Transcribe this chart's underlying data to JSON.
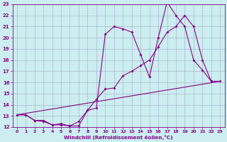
{
  "background_color": "#cceef0",
  "grid_color": "#aab8cc",
  "line_color": "#880088",
  "xlim": [
    -0.5,
    23.5
  ],
  "ylim": [
    12,
    23
  ],
  "xlabel": "Windchill (Refroidissement éolien,°C)",
  "xticks": [
    0,
    1,
    2,
    3,
    4,
    5,
    6,
    7,
    8,
    9,
    10,
    11,
    12,
    13,
    14,
    15,
    16,
    17,
    18,
    19,
    20,
    21,
    22,
    23
  ],
  "yticks": [
    12,
    13,
    14,
    15,
    16,
    17,
    18,
    19,
    20,
    21,
    22,
    23
  ],
  "line1_x": [
    0,
    1,
    2,
    3,
    4,
    5,
    6,
    7,
    8,
    9,
    10,
    11,
    12,
    13,
    14,
    15,
    16,
    17,
    18,
    19,
    20,
    21,
    22,
    23
  ],
  "line1_y": [
    13.1,
    13.1,
    12.6,
    12.6,
    12.2,
    12.2,
    12.1,
    12.1,
    13.5,
    13.7,
    20.3,
    21.0,
    20.8,
    20.5,
    18.5,
    16.5,
    20.0,
    23.2,
    22.0,
    21.0,
    18.0,
    17.1,
    16.1,
    null
  ],
  "line2_x": [
    0,
    1,
    2,
    3,
    4,
    5,
    6,
    7,
    8,
    9,
    10,
    11,
    12,
    13,
    14,
    15,
    16,
    17,
    18,
    19,
    20,
    21,
    22,
    23
  ],
  "line2_y": [
    13.1,
    13.1,
    12.6,
    12.5,
    12.2,
    12.3,
    12.1,
    12.5,
    13.5,
    14.5,
    15.4,
    15.5,
    16.6,
    17.0,
    17.5,
    18.0,
    19.2,
    20.5,
    21.0,
    22.0,
    21.0,
    18.0,
    16.1,
    16.1
  ],
  "line3_x": [
    0,
    23
  ],
  "line3_y": [
    13.1,
    16.1
  ]
}
